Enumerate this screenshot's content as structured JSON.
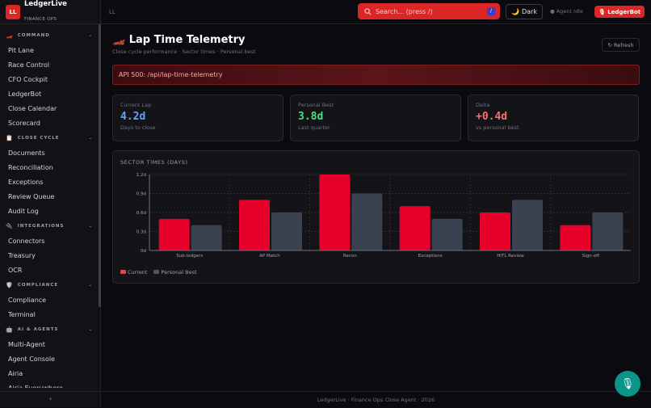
{
  "brand": {
    "logo": "LL",
    "name": "LedgerLive",
    "tagline": "FINANCE OPS"
  },
  "sidebar": {
    "sections": [
      {
        "title": "COMMAND",
        "icon": "race-car-icon",
        "glyph": "🏎️",
        "items": [
          "Pit Lane",
          "Race Control",
          "CFO Cockpit",
          "LedgerBot",
          "Close Calendar",
          "Scorecard"
        ]
      },
      {
        "title": "CLOSE CYCLE",
        "icon": "clipboard-icon",
        "glyph": "📋",
        "items": [
          "Documents",
          "Reconciliation",
          "Exceptions",
          "Review Queue",
          "Audit Log"
        ]
      },
      {
        "title": "INTEGRATIONS",
        "icon": "plug-icon",
        "glyph": "🔌",
        "items": [
          "Connectors",
          "Treasury",
          "OCR"
        ]
      },
      {
        "title": "COMPLIANCE",
        "icon": "shield-icon",
        "glyph": "🛡️",
        "items": [
          "Compliance",
          "Terminal"
        ]
      },
      {
        "title": "AI & AGENTS",
        "icon": "robot-icon",
        "glyph": "🤖",
        "items": [
          "Multi-Agent",
          "Agent Console",
          "Airia",
          "Airia Everywhere"
        ]
      }
    ],
    "collapse": "‹"
  },
  "header": {
    "breadcrumb": "LL",
    "search_placeholder": "Search... (press /)",
    "search_key": "/",
    "theme": "Dark",
    "agent_status": "● Agent Idle",
    "ledgerbot": "🎙 LedgerBot"
  },
  "page": {
    "title": "Lap Time Telemetry",
    "title_icon": "🏎️",
    "subtitle": "Close cycle performance · Sector times · Personal best",
    "refresh": "↻ Refresh",
    "error": "API 500: /api/lap-time-telemetry"
  },
  "stats": [
    {
      "label": "Current Lap",
      "value": "4.2d",
      "sub": "Days to close",
      "color": "#60a5fa"
    },
    {
      "label": "Personal Best",
      "value": "3.8d",
      "sub": "Last quarter",
      "color": "#4ade80"
    },
    {
      "label": "Delta",
      "value": "+0.4d",
      "sub": "vs personal best",
      "color": "#f87171"
    }
  ],
  "chart_data": {
    "type": "bar",
    "title": "SECTOR TIMES (DAYS)",
    "categories": [
      "Sub-ledgers",
      "AP Match",
      "Recon",
      "Exceptions",
      "HITL Review",
      "Sign-off"
    ],
    "series": [
      {
        "name": "Current",
        "color": "#e6002a",
        "values": [
          0.5,
          0.8,
          1.2,
          0.7,
          0.6,
          0.4
        ]
      },
      {
        "name": "Personal Best",
        "color": "#3a4150",
        "values": [
          0.4,
          0.6,
          0.9,
          0.5,
          0.8,
          0.6
        ]
      }
    ],
    "yticks": [
      "0d",
      "0.3d",
      "0.6d",
      "0.9d",
      "1.2d"
    ],
    "ylim": [
      0,
      1.2
    ],
    "grid": true,
    "legend": "bottom-left"
  },
  "footer": "LedgerLive · Finance Ops Close Agent · 2026"
}
